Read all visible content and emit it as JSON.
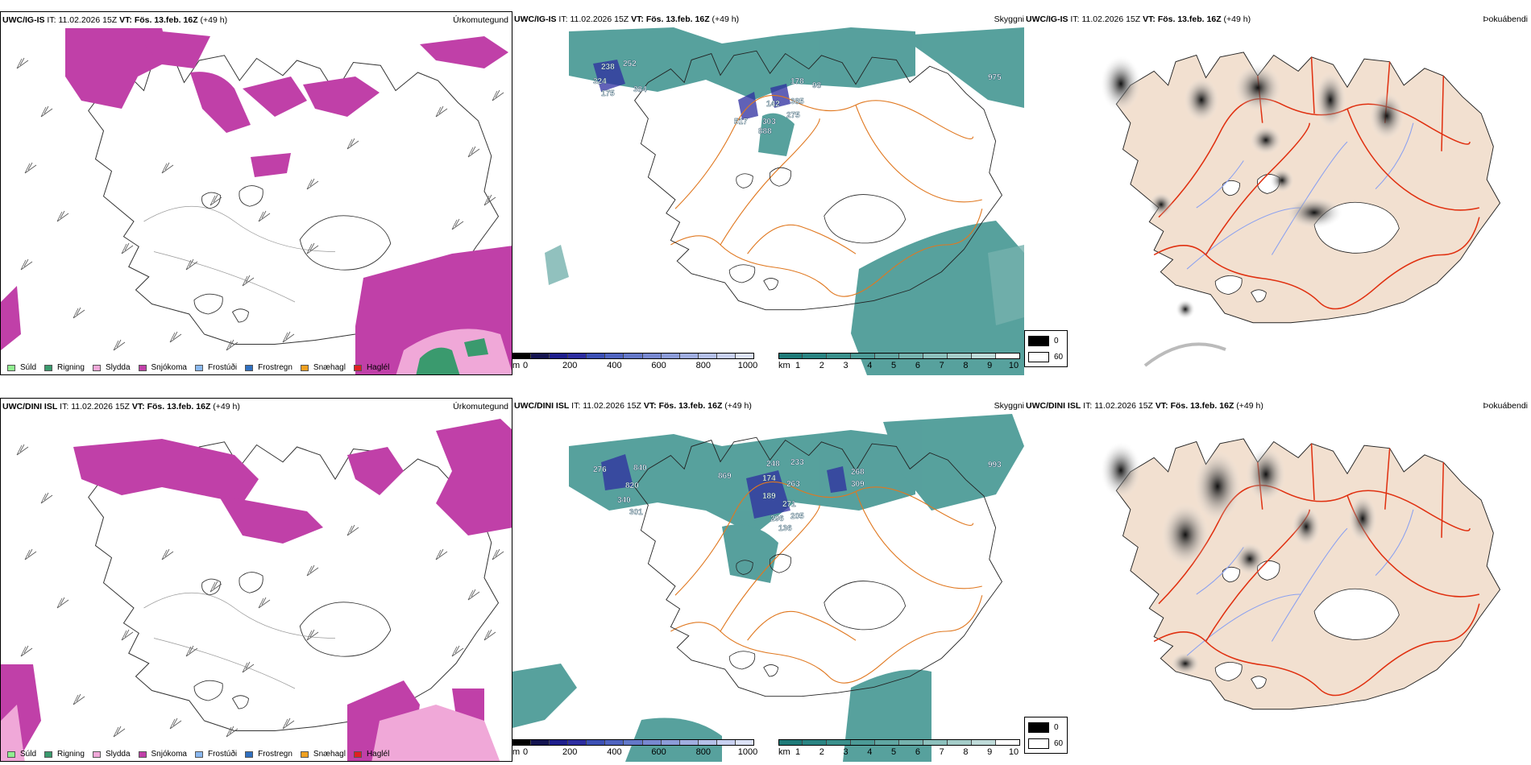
{
  "rows": [
    {
      "model": "UWC/IG-IS",
      "run_prefix": "IT:",
      "run_time": "11.02.2026 15Z",
      "valid_prefix": "VT:",
      "valid_time": "Fös. 13.feb. 16Z",
      "lead": "(+49 h)",
      "heights": [
        "238",
        "252",
        "324",
        "175",
        "384",
        "142",
        "385",
        "178",
        "98",
        "517",
        "303",
        "275",
        "888",
        "975"
      ]
    },
    {
      "model": "UWC/DINI ISL",
      "run_prefix": "IT:",
      "run_time": "11.02.2026 15Z",
      "valid_prefix": "VT:",
      "valid_time": "Fös. 13.feb. 16Z",
      "lead": "(+49 h)",
      "heights": [
        "276",
        "840",
        "820",
        "340",
        "301",
        "869",
        "248",
        "233",
        "174",
        "263",
        "189",
        "271",
        "296",
        "205",
        "268",
        "309",
        "136",
        "993"
      ]
    }
  ],
  "panel_titles": {
    "precip_type": "Úrkomutegund",
    "cloud_base": "Skyggni",
    "fog": "Þokuábendi"
  },
  "precip_legend": [
    {
      "label": "Súld",
      "color": "#90ee90"
    },
    {
      "label": "Rigning",
      "color": "#3a9a6e"
    },
    {
      "label": "Slydda",
      "color": "#f0a8d8"
    },
    {
      "label": "Snjókoma",
      "color": "#c040a8"
    },
    {
      "label": "Frostúði",
      "color": "#8ab8f0"
    },
    {
      "label": "Frostregn",
      "color": "#3070c0"
    },
    {
      "label": "Snæhagl",
      "color": "#f0a020"
    },
    {
      "label": "Haglél",
      "color": "#e02020"
    }
  ],
  "height_bar": {
    "unit": "m",
    "ticks": [
      "0",
      "200",
      "400",
      "600",
      "800",
      "1000"
    ],
    "colors": [
      "#000000",
      "#141450",
      "#1e1e8c",
      "#2d2da0",
      "#3c50b4",
      "#5064c0",
      "#6478c8",
      "#7888d0",
      "#8c9cd8",
      "#a0aee0",
      "#b4c0e8",
      "#c8d0f0",
      "#dce2f6"
    ]
  },
  "visibility_bar": {
    "unit": "km",
    "ticks": [
      "1",
      "2",
      "3",
      "4",
      "5",
      "6",
      "7",
      "8",
      "9",
      "10"
    ],
    "colors": [
      "#1e7a78",
      "#2a8482",
      "#3a908c",
      "#4c9a96",
      "#60a6a2",
      "#76b2ae",
      "#8cc0bc",
      "#a4ccc8",
      "#bedad8",
      "#ffffff"
    ]
  },
  "fog_key": {
    "dark": "0",
    "light": "60"
  }
}
